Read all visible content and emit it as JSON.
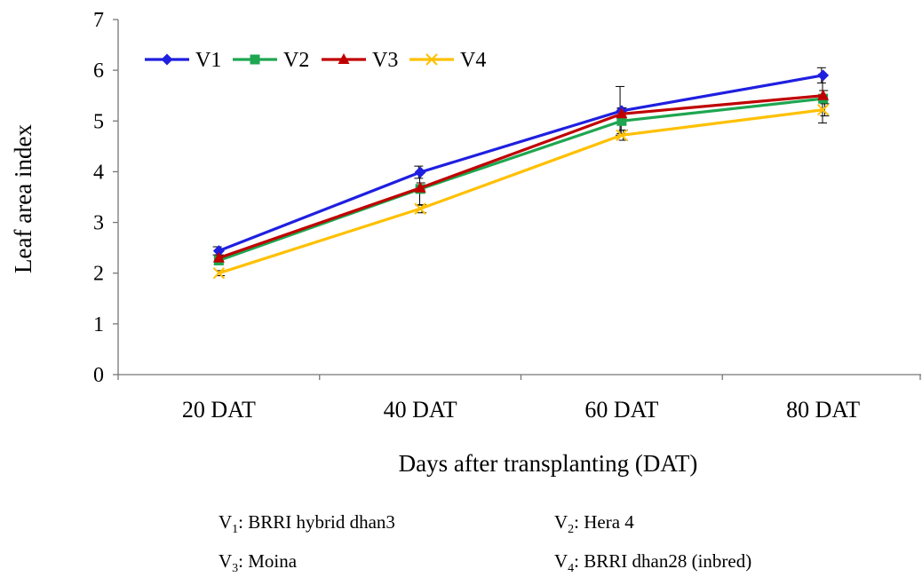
{
  "chart_data": {
    "type": "line",
    "title": "",
    "xlabel": "Days after  transplanting (DAT)",
    "ylabel": "Leaf area index",
    "categories": [
      "20 DAT",
      "40 DAT",
      "60 DAT",
      "80 DAT"
    ],
    "ylim": [
      0,
      7
    ],
    "yticks": [
      0,
      1,
      2,
      3,
      4,
      5,
      6,
      7
    ],
    "grid": false,
    "legend_position": "top-left",
    "series": [
      {
        "name": "V1",
        "values": [
          2.44,
          3.99,
          5.2,
          5.9
        ],
        "color": "#1f1fe0",
        "marker": "diamond",
        "error": [
          0.08,
          0.12,
          0.48,
          0.15
        ]
      },
      {
        "name": "V2",
        "values": [
          2.25,
          3.66,
          5.0,
          5.44
        ],
        "color": "#1ea650",
        "marker": "square",
        "error": [
          0.08,
          0.32,
          0.25,
          0.48
        ]
      },
      {
        "name": "V3",
        "values": [
          2.3,
          3.68,
          5.14,
          5.5
        ],
        "color": "#c00000",
        "marker": "triangle",
        "error": [
          0.06,
          0.1,
          0.12,
          0.1
        ]
      },
      {
        "name": "V4",
        "values": [
          2.0,
          3.27,
          4.72,
          5.22
        ],
        "color": "#ffc000",
        "marker": "x",
        "error": [
          0.05,
          0.08,
          0.1,
          0.12
        ]
      }
    ]
  },
  "footnotes": [
    {
      "sym": "V",
      "sub": "1",
      "text": ": BRRI hybrid dhan3"
    },
    {
      "sym": "V",
      "sub": "2",
      "text": ": Hera 4"
    },
    {
      "sym": "V",
      "sub": "3",
      "text": ": Moina"
    },
    {
      "sym": "V",
      "sub": "4",
      "text": ": BRRI dhan28 (inbred)"
    }
  ]
}
